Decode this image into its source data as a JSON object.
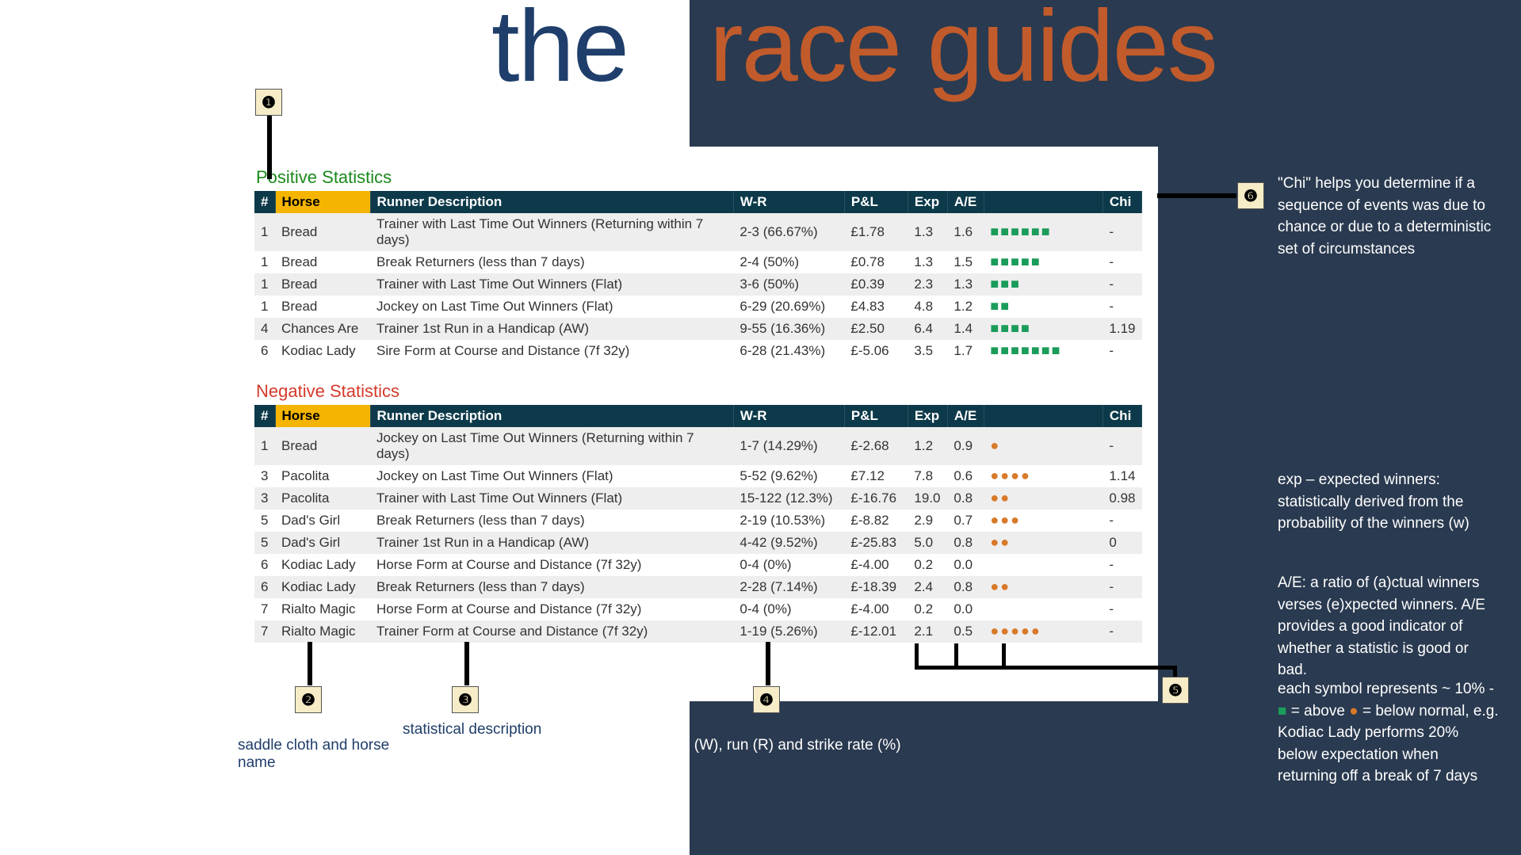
{
  "title": {
    "the": "the",
    "race_guides": "race guides"
  },
  "columns": [
    "#",
    "Horse",
    "Runner Description",
    "W-R",
    "P&L",
    "Exp",
    "A/E",
    "",
    "Chi"
  ],
  "positive": {
    "heading": "Positive Statistics",
    "heading_color": "#1a8a1a",
    "symbol_color": "#1a9c5a",
    "rows": [
      {
        "num": "1",
        "horse": "Bread",
        "desc": "Trainer with Last Time Out Winners (Returning within 7 days)",
        "wr": "2-3 (66.67%)",
        "pl": "£1.78",
        "exp": "1.3",
        "ae": "1.6",
        "dots": 6,
        "chi": "-"
      },
      {
        "num": "1",
        "horse": "Bread",
        "desc": "Break Returners (less than 7 days)",
        "wr": "2-4 (50%)",
        "pl": "£0.78",
        "exp": "1.3",
        "ae": "1.5",
        "dots": 5,
        "chi": "-"
      },
      {
        "num": "1",
        "horse": "Bread",
        "desc": "Trainer with Last Time Out Winners (Flat)",
        "wr": "3-6 (50%)",
        "pl": "£0.39",
        "exp": "2.3",
        "ae": "1.3",
        "dots": 3,
        "chi": "-"
      },
      {
        "num": "1",
        "horse": "Bread",
        "desc": "Jockey on Last Time Out Winners (Flat)",
        "wr": "6-29 (20.69%)",
        "pl": "£4.83",
        "exp": "4.8",
        "ae": "1.2",
        "dots": 2,
        "chi": "-"
      },
      {
        "num": "4",
        "horse": "Chances Are",
        "desc": "Trainer 1st Run in a Handicap (AW)",
        "wr": "9-55 (16.36%)",
        "pl": "£2.50",
        "exp": "6.4",
        "exp_black": true,
        "ae": "1.4",
        "dots": 4,
        "chi": "1.19"
      },
      {
        "num": "6",
        "horse": "Kodiac Lady",
        "desc": "Sire Form at Course and Distance (7f 32y)",
        "wr": "6-28 (21.43%)",
        "pl": "£-5.06",
        "exp": "3.5",
        "ae": "1.7",
        "dots": 7,
        "chi": "-"
      }
    ]
  },
  "negative": {
    "heading": "Negative Statistics",
    "heading_color": "#d43a2a",
    "symbol_color": "#d87a2a",
    "rows": [
      {
        "num": "1",
        "horse": "Bread",
        "desc": "Jockey on Last Time Out Winners (Returning within 7 days)",
        "wr": "1-7 (14.29%)",
        "pl": "£-2.68",
        "exp": "1.2",
        "ae": "0.9",
        "dots": 1,
        "chi": "-"
      },
      {
        "num": "3",
        "horse": "Pacolita",
        "desc": "Jockey on Last Time Out Winners (Flat)",
        "wr": "5-52 (9.62%)",
        "pl": "£7.12",
        "exp": "7.8",
        "exp_black": true,
        "ae": "0.6",
        "dots": 4,
        "chi": "1.14"
      },
      {
        "num": "3",
        "horse": "Pacolita",
        "desc": "Trainer with Last Time Out Winners (Flat)",
        "wr": "15-122 (12.3%)",
        "pl": "£-16.76",
        "exp": "19.0",
        "exp_black": true,
        "ae": "0.8",
        "dots": 2,
        "chi": "0.98"
      },
      {
        "num": "5",
        "horse": "Dad's Girl",
        "desc": "Break Returners (less than 7 days)",
        "wr": "2-19 (10.53%)",
        "pl": "£-8.82",
        "exp": "2.9",
        "ae": "0.7",
        "dots": 3,
        "chi": "-"
      },
      {
        "num": "5",
        "horse": "Dad's Girl",
        "desc": "Trainer 1st Run in a Handicap (AW)",
        "wr": "4-42 (9.52%)",
        "pl": "£-25.83",
        "exp": "5.0",
        "exp_black": true,
        "ae": "0.8",
        "dots": 2,
        "chi": "0"
      },
      {
        "num": "6",
        "horse": "Kodiac Lady",
        "desc": "Horse Form at Course and Distance (7f 32y)",
        "wr": "0-4 (0%)",
        "pl": "£-4.00",
        "exp": "0.2",
        "ae": "0.0",
        "dots": 0,
        "chi": "-"
      },
      {
        "num": "6",
        "horse": "Kodiac Lady",
        "desc": "Break Returners (less than 7 days)",
        "wr": "2-28 (7.14%)",
        "pl": "£-18.39",
        "exp": "2.4",
        "ae": "0.8",
        "dots": 2,
        "chi": "-"
      },
      {
        "num": "7",
        "horse": "Rialto Magic",
        "desc": "Horse Form at Course and Distance (7f 32y)",
        "wr": "0-4 (0%)",
        "pl": "£-4.00",
        "exp": "0.2",
        "ae": "0.0",
        "dots": 0,
        "chi": "-"
      },
      {
        "num": "7",
        "horse": "Rialto Magic",
        "desc": "Trainer Form at Course and Distance (7f 32y)",
        "wr": "1-19 (5.26%)",
        "pl": "£-12.01",
        "exp": "2.1",
        "ae": "0.5",
        "dots": 5,
        "chi": "-"
      }
    ]
  },
  "callouts": {
    "c1": {
      "num": "❶"
    },
    "c2": {
      "num": "❷",
      "text": "saddle cloth and horse name"
    },
    "c3": {
      "num": "❸",
      "text": "statistical description"
    },
    "c4": {
      "num": "❹",
      "text": "win (W), run (R) and strike rate (%)"
    },
    "c5": {
      "num": "❺"
    },
    "c6": {
      "num": "❻"
    }
  },
  "notes": {
    "chi": "\"Chi\" helps you determine if a sequence of events was due to chance or due to a deterministic set of circumstances",
    "exp": "exp – expected winners: statistically derived from the probability of the winners (w)",
    "ae": "A/E: a ratio of (a)ctual winners verses (e)xpected winners. A/E provides a good indicator of whether a statistic is good or bad.",
    "symbols_pre": "each symbol represents ~ 10% - ",
    "symbols_mid1": " = above ",
    "symbols_mid2": " = below  normal, e.g. Kodiac Lady performs 20% below expectation when returning off a break of 7 days"
  },
  "colors": {
    "dark_panel": "#2a3a50",
    "header_bg": "#0d3a4a",
    "horse_col_bg": "#f4b400",
    "row_even": "#eeeeee",
    "row_odd": "#ffffff",
    "badge_bg": "#f7ecc8"
  }
}
